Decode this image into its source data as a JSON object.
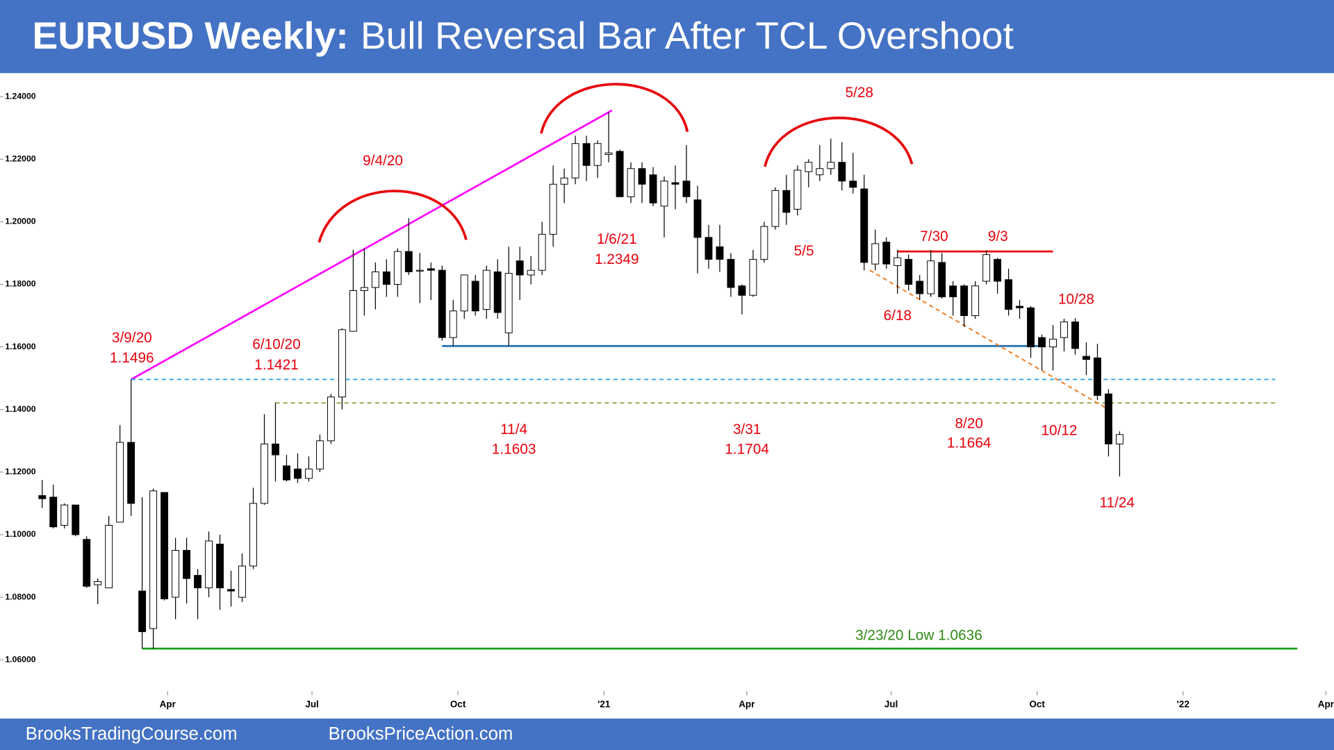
{
  "chart_data": {
    "type": "candlestick",
    "title_lead": "EURUSD Weekly:",
    "title": "Bull Reversal Bar After TCL Overshoot",
    "ylim": [
      1.05,
      1.2475
    ],
    "yticks": [
      {
        "value": 1.06,
        "label": "1.06000"
      },
      {
        "value": 1.08,
        "label": "1.08000"
      },
      {
        "value": 1.1,
        "label": "1.10000"
      },
      {
        "value": 1.12,
        "label": "1.12000"
      },
      {
        "value": 1.14,
        "label": "1.14000"
      },
      {
        "value": 1.16,
        "label": "1.16000"
      },
      {
        "value": 1.18,
        "label": "1.18000"
      },
      {
        "value": 1.2,
        "label": "1.20000"
      },
      {
        "value": 1.22,
        "label": "1.22000"
      },
      {
        "value": 1.24,
        "label": "1.24000"
      }
    ],
    "xlim": [
      -3.8,
      116.3
    ],
    "xticks": [
      {
        "value": 11.29,
        "label": "Apr"
      },
      {
        "value": 24.29,
        "label": "Jul"
      },
      {
        "value": 37.43,
        "label": "Oct"
      },
      {
        "value": 50.57,
        "label": "'21"
      },
      {
        "value": 63.43,
        "label": "Apr"
      },
      {
        "value": 76.43,
        "label": "Jul"
      },
      {
        "value": 89.57,
        "label": "Oct"
      },
      {
        "value": 102.71,
        "label": "'22"
      },
      {
        "value": 115.57,
        "label": "Apr"
      }
    ],
    "up_color": "#ffffff",
    "down_color": "#000000",
    "open": [
      1.1125,
      1.112,
      1.103,
      1.1095,
      1.0985,
      1.084,
      1.083,
      1.104,
      1.1295,
      1.082,
      1.07,
      1.1135,
      1.08,
      1.095,
      1.087,
      1.083,
      1.097,
      1.0825,
      1.08,
      1.09,
      1.11,
      1.129,
      1.122,
      1.121,
      1.118,
      1.121,
      1.13,
      1.144,
      1.165,
      1.178,
      1.179,
      1.184,
      1.18,
      1.1905,
      1.1845,
      1.185,
      1.1845,
      1.163,
      1.1715,
      1.181,
      1.172,
      1.184,
      1.1645,
      1.1875,
      1.183,
      1.1845,
      1.196,
      1.212,
      1.214,
      1.225,
      1.218,
      1.2215,
      1.2225,
      1.208,
      1.217,
      1.215,
      1.205,
      1.2125,
      1.213,
      1.207,
      1.195,
      1.192,
      1.188,
      1.1795,
      1.1765,
      1.188,
      1.1985,
      1.21,
      1.204,
      1.216,
      1.215,
      1.217,
      1.219,
      1.213,
      1.2105,
      1.1865,
      1.1935,
      1.186,
      1.188,
      1.181,
      1.177,
      1.187,
      1.1795,
      1.1795,
      1.17,
      1.181,
      1.188,
      1.1815,
      1.173,
      1.1725,
      1.163,
      1.16,
      1.163,
      1.168,
      1.157,
      1.1565,
      1.145,
      1.129
    ],
    "high": [
      1.1175,
      1.116,
      1.11,
      1.1095,
      1.0995,
      1.086,
      1.106,
      1.135,
      1.1496,
      1.112,
      1.1147,
      1.1135,
      1.099,
      1.099,
      1.089,
      1.101,
      1.1,
      1.0885,
      1.094,
      1.115,
      1.1385,
      1.1422,
      1.1255,
      1.126,
      1.125,
      1.132,
      1.145,
      1.166,
      1.191,
      1.1915,
      1.187,
      1.188,
      1.1915,
      1.2011,
      1.19,
      1.187,
      1.186,
      1.175,
      1.183,
      1.183,
      1.186,
      1.188,
      1.192,
      1.192,
      1.189,
      1.2,
      1.218,
      1.217,
      1.2275,
      1.2275,
      1.226,
      1.2349,
      1.223,
      1.219,
      1.219,
      1.2175,
      1.2145,
      1.218,
      1.2245,
      1.2115,
      1.199,
      1.199,
      1.19,
      1.18,
      1.191,
      1.2,
      1.211,
      1.215,
      1.218,
      1.22,
      1.2245,
      1.2266,
      1.2255,
      1.222,
      1.215,
      1.1975,
      1.195,
      1.191,
      1.1895,
      1.183,
      1.191,
      1.19,
      1.181,
      1.18,
      1.181,
      1.1909,
      1.1885,
      1.185,
      1.175,
      1.173,
      1.164,
      1.167,
      1.169,
      1.1692,
      1.1615,
      1.161,
      1.1465,
      1.133
    ],
    "low": [
      1.1085,
      1.102,
      1.102,
      1.0995,
      1.083,
      1.0778,
      1.083,
      1.104,
      1.106,
      1.0636,
      1.0636,
      1.079,
      1.073,
      1.078,
      1.073,
      1.08,
      1.076,
      1.077,
      1.0785,
      1.089,
      1.1095,
      1.117,
      1.117,
      1.1165,
      1.117,
      1.12,
      1.129,
      1.14,
      1.165,
      1.17,
      1.172,
      1.176,
      1.176,
      1.183,
      1.174,
      1.175,
      1.162,
      1.1603,
      1.169,
      1.17,
      1.169,
      1.169,
      1.1603,
      1.175,
      1.18,
      1.183,
      1.192,
      1.206,
      1.212,
      1.213,
      1.214,
      1.219,
      1.208,
      1.206,
      1.206,
      1.205,
      1.195,
      1.204,
      1.206,
      1.1835,
      1.185,
      1.184,
      1.176,
      1.1704,
      1.176,
      1.187,
      1.1975,
      1.199,
      1.202,
      1.211,
      1.213,
      1.215,
      1.21,
      1.209,
      1.1845,
      1.1845,
      1.185,
      1.177,
      1.178,
      1.175,
      1.176,
      1.1755,
      1.17,
      1.1664,
      1.169,
      1.18,
      1.177,
      1.17,
      1.169,
      1.1565,
      1.1525,
      1.1525,
      1.1585,
      1.1575,
      1.151,
      1.143,
      1.125,
      1.1186
    ],
    "close": [
      1.1115,
      1.1025,
      1.1095,
      1.1,
      1.0835,
      1.085,
      1.103,
      1.1295,
      1.11,
      1.069,
      1.114,
      1.0795,
      1.095,
      1.086,
      1.083,
      1.098,
      1.083,
      1.082,
      1.09,
      1.11,
      1.129,
      1.1255,
      1.1175,
      1.118,
      1.121,
      1.13,
      1.144,
      1.1655,
      1.178,
      1.179,
      1.184,
      1.18,
      1.1905,
      1.184,
      1.1845,
      1.1845,
      1.163,
      1.1715,
      1.183,
      1.1715,
      1.1845,
      1.171,
      1.1835,
      1.183,
      1.1845,
      1.196,
      1.212,
      1.214,
      1.225,
      1.218,
      1.225,
      1.222,
      1.208,
      1.217,
      1.212,
      1.206,
      1.213,
      1.212,
      1.208,
      1.195,
      1.188,
      1.188,
      1.179,
      1.1765,
      1.188,
      1.1985,
      1.21,
      1.203,
      1.2165,
      1.219,
      1.217,
      1.219,
      1.213,
      1.211,
      1.187,
      1.193,
      1.1865,
      1.1885,
      1.18,
      1.177,
      1.1875,
      1.176,
      1.176,
      1.17,
      1.1795,
      1.1895,
      1.181,
      1.172,
      1.1725,
      1.16,
      1.16,
      1.1625,
      1.168,
      1.1595,
      1.156,
      1.1445,
      1.129,
      1.132
    ],
    "lines": [
      {
        "x": [
          8,
          51.3
        ],
        "y": [
          1.1496,
          1.2356
        ],
        "color": "#ff00ff",
        "dash": false
      },
      {
        "x": [
          8,
          111
        ],
        "y": [
          1.1496,
          1.1496
        ],
        "color": "#2aa3e0",
        "dash": true
      },
      {
        "x": [
          21,
          111
        ],
        "y": [
          1.1421,
          1.1421
        ],
        "color": "#9aa84a",
        "dash": true
      },
      {
        "x": [
          36,
          90
        ],
        "y": [
          1.1603,
          1.1603
        ],
        "color": "#1f6fb0",
        "dash": false
      },
      {
        "x": [
          77,
          91
        ],
        "y": [
          1.1905,
          1.1905
        ],
        "color": "#e8000b",
        "dash": false
      },
      {
        "x": [
          74.5,
          96
        ],
        "y": [
          1.1845,
          1.14
        ],
        "color": "#f07b1e",
        "dash": true
      },
      {
        "x": [
          9,
          113
        ],
        "y": [
          1.0636,
          1.0636
        ],
        "color": "#16a016",
        "dash": false
      }
    ],
    "annotations": [
      "9/4/20",
      "1/6/21",
      "1.2349",
      "5/28",
      "5/5",
      "7/30",
      "9/3",
      "6/18",
      "10/28",
      "3/9/20",
      "1.1496",
      "6/10/20",
      "1.1421",
      "11/4",
      "1.1603",
      "3/31",
      "1.1704",
      "8/20",
      "1.1664",
      "10/12",
      "11/24",
      "3/23/20 Low 1.0636"
    ]
  },
  "footer": [
    "BrooksTradingCourse.com",
    "BrooksPriceAction.com"
  ]
}
